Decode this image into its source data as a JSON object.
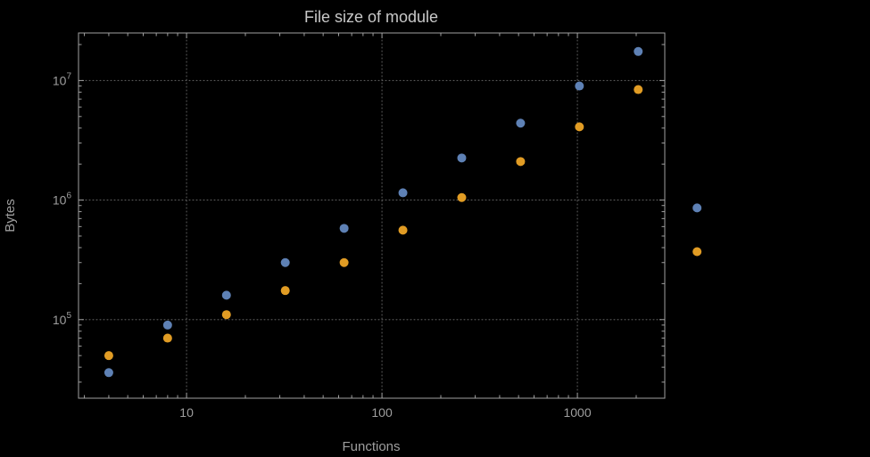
{
  "page": {
    "background": "#000000"
  },
  "chart_data": {
    "type": "scatter",
    "title": "File size of module",
    "xlabel": "Functions",
    "ylabel": "Bytes",
    "x_scale": "log",
    "y_scale": "log",
    "xlim": [
      2.8,
      2800
    ],
    "ylim": [
      22000,
      25000000
    ],
    "x_ticks": [
      10,
      100,
      1000
    ],
    "x_tick_labels": [
      "10",
      "100",
      "1000"
    ],
    "y_tick_exponents": [
      5,
      6,
      7
    ],
    "grid": true,
    "legend_position": "none",
    "frame_color": "#a0a0a0",
    "grid_color": "#5a5a5a",
    "text_color": "#9e9e9e",
    "title_color": "#c8c8c8",
    "series": [
      {
        "name": "series-1-blue",
        "color": "#5e81b5",
        "marker": "circle",
        "points": [
          [
            4,
            36000
          ],
          [
            8,
            90000
          ],
          [
            16,
            160000
          ],
          [
            32,
            300000
          ],
          [
            64,
            580000
          ],
          [
            128,
            1150000
          ],
          [
            256,
            2250000
          ],
          [
            512,
            4400000
          ],
          [
            1024,
            9000000
          ],
          [
            2048,
            17500000
          ],
          [
            4096,
            860000
          ]
        ]
      },
      {
        "name": "series-2-orange",
        "color": "#e19c24",
        "marker": "circle",
        "points": [
          [
            4,
            50000
          ],
          [
            8,
            70000
          ],
          [
            16,
            110000
          ],
          [
            32,
            175000
          ],
          [
            64,
            300000
          ],
          [
            128,
            560000
          ],
          [
            256,
            1050000
          ],
          [
            512,
            2100000
          ],
          [
            1024,
            4100000
          ],
          [
            2048,
            8400000
          ],
          [
            4096,
            370000
          ]
        ]
      }
    ]
  }
}
